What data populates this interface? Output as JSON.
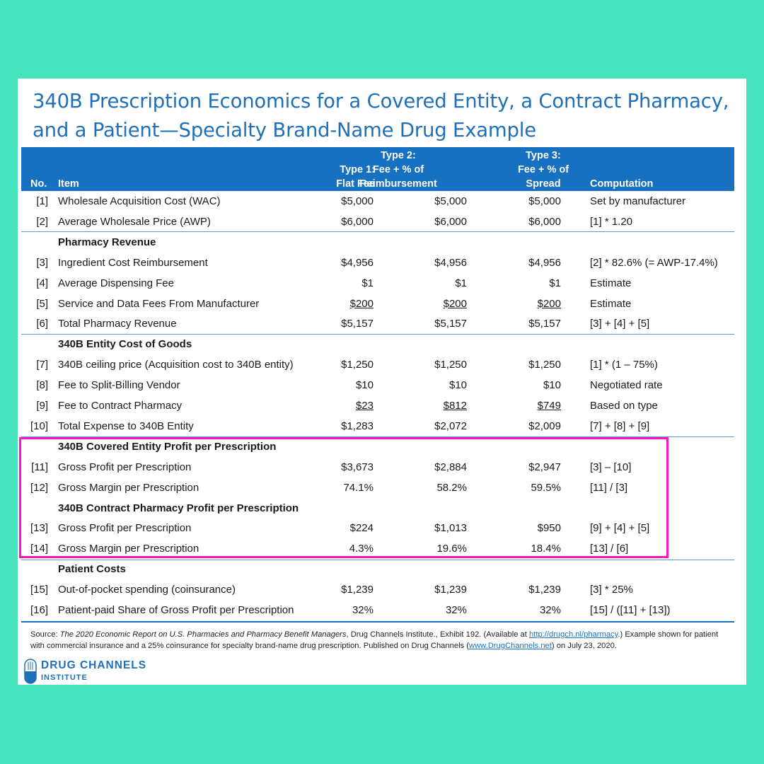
{
  "title": "340B Prescription Economics for a Covered Entity, a Contract Pharmacy, and a Patient—Specialty Brand-Name Drug Example",
  "headers": {
    "no": "No.",
    "item": "Item",
    "type1": [
      "Type 1:",
      "Flat Fee"
    ],
    "type2": [
      "Type 2:",
      "Fee + % of",
      "Reimbursement"
    ],
    "type3": [
      "Type 3:",
      "Fee + % of",
      "Spread"
    ],
    "computation": "Computation"
  },
  "rows": [
    {
      "no": "[1]",
      "item": "Wholesale Acquisition Cost (WAC)",
      "c1": "$5,000",
      "c2": "$5,000",
      "c3": "$5,000",
      "comp": "Set by manufacturer"
    },
    {
      "no": "[2]",
      "item": "Average Wholesale Price (AWP)",
      "c1": "$6,000",
      "c2": "$6,000",
      "c3": "$6,000",
      "comp": "[1] * 1.20"
    },
    {
      "section": "Pharmacy Revenue"
    },
    {
      "no": "[3]",
      "item": "Ingredient Cost Reimbursement",
      "c1": "$4,956",
      "c2": "$4,956",
      "c3": "$4,956",
      "comp": "[2] * 82.6% (= AWP-17.4%)"
    },
    {
      "no": "[4]",
      "item": "Average Dispensing Fee",
      "c1": "$1",
      "c2": "$1",
      "c3": "$1",
      "comp": "Estimate"
    },
    {
      "no": "[5]",
      "item": "Service and Data Fees From Manufacturer",
      "c1": "$200",
      "c2": "$200",
      "c3": "$200",
      "comp": "Estimate",
      "underline": true
    },
    {
      "no": "[6]",
      "item": "Total Pharmacy Revenue",
      "c1": "$5,157",
      "c2": "$5,157",
      "c3": "$5,157",
      "comp": "[3] + [4] + [5]"
    },
    {
      "section": "340B Entity Cost of Goods"
    },
    {
      "no": "[7]",
      "item": "340B ceiling price (Acquisition cost to 340B entity)",
      "c1": "$1,250",
      "c2": "$1,250",
      "c3": "$1,250",
      "comp": "[1] * (1 – 75%)"
    },
    {
      "no": "[8]",
      "item": "Fee to Split-Billing Vendor",
      "c1": "$10",
      "c2": "$10",
      "c3": "$10",
      "comp": "Negotiated rate"
    },
    {
      "no": "[9]",
      "item": "Fee to Contract Pharmacy",
      "c1": "$23",
      "c2": "$812",
      "c3": "$749",
      "comp": "Based on type",
      "underline": true
    },
    {
      "no": "[10]",
      "item": "Total Expense to 340B Entity",
      "c1": "$1,283",
      "c2": "$2,072",
      "c3": "$2,009",
      "comp": "[7] + [8] + [9]"
    },
    {
      "section": "340B Covered Entity Profit per Prescription"
    },
    {
      "no": "[11]",
      "item": "Gross Profit per Prescription",
      "c1": "$3,673",
      "c2": "$2,884",
      "c3": "$2,947",
      "comp": "[3] – [10]"
    },
    {
      "no": "[12]",
      "item": "Gross Margin per Prescription",
      "c1": "74.1%",
      "c2": "58.2%",
      "c3": "59.5%",
      "comp": "[11] / [3]"
    },
    {
      "section": "340B Contract Pharmacy Profit per Prescription"
    },
    {
      "no": "[13]",
      "item": "Gross Profit per Prescription",
      "c1": "$224",
      "c2": "$1,013",
      "c3": "$950",
      "comp": "[9] + [4] + [5]"
    },
    {
      "no": "[14]",
      "item": "Gross Margin per Prescription",
      "c1": "4.3%",
      "c2": "19.6%",
      "c3": "18.4%",
      "comp": "[13] / [6]"
    },
    {
      "section": "Patient Costs"
    },
    {
      "no": "[15]",
      "item": "Out-of-pocket spending (coinsurance)",
      "c1": "$1,239",
      "c2": "$1,239",
      "c3": "$1,239",
      "comp": "[3] * 25%"
    },
    {
      "no": "[16]",
      "item": "Patient-paid Share of Gross Profit per Prescription",
      "c1": "32%",
      "c2": "32%",
      "c3": "32%",
      "comp": "[15] / ([11] + [13])"
    }
  ],
  "source": {
    "prefix": "Source: ",
    "report": "The 2020 Economic Report on U.S. Pharmacies and Pharmacy Benefit Managers",
    "middle": ", Drug Channels Institute., Exhibit 192. (Available at ",
    "link1": "http://drugch.nl/pharmacy",
    "after_link1": ".) Example shown for patient with commercial insurance and a 25% coinsurance for specialty brand-name drug prescription. Published on Drug Channels (",
    "link2": "www.DrugChannels.net",
    "end": ") on July 23, 2020."
  },
  "logo": {
    "line1": "DRUG CHANNELS",
    "line2": "INSTITUTE"
  },
  "colors": {
    "background": "#46e3bd",
    "header": "#1770c0",
    "title": "#1f6fb9",
    "highlight_box": "#ff16c3"
  }
}
